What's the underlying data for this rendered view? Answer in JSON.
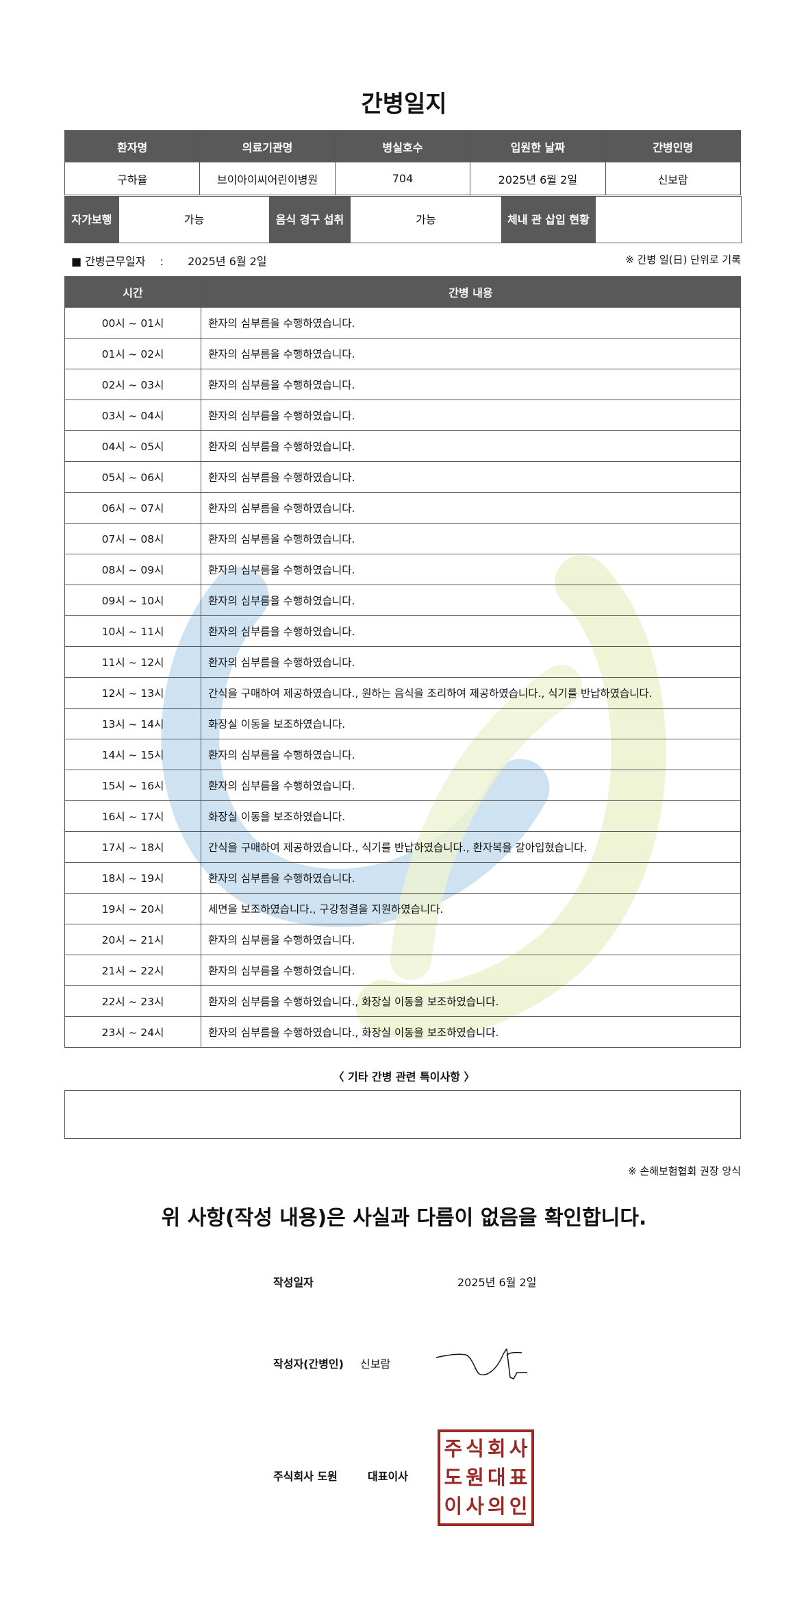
{
  "title": "간병일지",
  "info": {
    "headers": [
      "환자명",
      "의료기관명",
      "병실호수",
      "입원한 날짜",
      "간병인명"
    ],
    "values": [
      "구하율",
      "브이아이씨어린이병원",
      "704",
      "2025년 6월 2일",
      "신보람"
    ]
  },
  "status": {
    "walk_label": "자가보행",
    "walk_value": "가능",
    "food_label": "음식 경구 섭취",
    "food_value": "가능",
    "tube_label": "체내 관 삽입 현황",
    "tube_value": ""
  },
  "work_date": {
    "label": "■ 간병근무일자",
    "sep": ":",
    "value": "2025년 6월 2일",
    "note": "※ 간병 일(日) 단위로 기록"
  },
  "log": {
    "headers": [
      "시간",
      "간병 내용"
    ],
    "rows": [
      [
        "00시 ~ 01시",
        "환자의 심부름을 수행하였습니다."
      ],
      [
        "01시 ~ 02시",
        "환자의 심부름을 수행하였습니다."
      ],
      [
        "02시 ~ 03시",
        "환자의 심부름을 수행하였습니다."
      ],
      [
        "03시 ~ 04시",
        "환자의 심부름을 수행하였습니다."
      ],
      [
        "04시 ~ 05시",
        "환자의 심부름을 수행하였습니다."
      ],
      [
        "05시 ~ 06시",
        "환자의 심부름을 수행하였습니다."
      ],
      [
        "06시 ~ 07시",
        "환자의 심부름을 수행하였습니다."
      ],
      [
        "07시 ~ 08시",
        "환자의 심부름을 수행하였습니다."
      ],
      [
        "08시 ~ 09시",
        "환자의 심부름을 수행하였습니다."
      ],
      [
        "09시 ~ 10시",
        "환자의 심부름을 수행하였습니다."
      ],
      [
        "10시 ~ 11시",
        "환자의 심부름을 수행하였습니다."
      ],
      [
        "11시 ~ 12시",
        "환자의 심부름을 수행하였습니다."
      ],
      [
        "12시 ~ 13시",
        "간식을 구매하여 제공하였습니다., 원하는 음식을 조리하여 제공하였습니다., 식기를 반납하였습니다."
      ],
      [
        "13시 ~ 14시",
        "화장실 이동을 보조하였습니다."
      ],
      [
        "14시 ~ 15시",
        "환자의 심부름을 수행하였습니다."
      ],
      [
        "15시 ~ 16시",
        "환자의 심부름을 수행하였습니다."
      ],
      [
        "16시 ~ 17시",
        "화장실 이동을 보조하였습니다."
      ],
      [
        "17시 ~ 18시",
        "간식을 구매하여 제공하였습니다., 식기를 반납하였습니다., 환자복을 갈아입혔습니다."
      ],
      [
        "18시 ~ 19시",
        "환자의 심부름을 수행하였습니다."
      ],
      [
        "19시 ~ 20시",
        "세면을 보조하였습니다., 구강청결을 지원하였습니다."
      ],
      [
        "20시 ~ 21시",
        "환자의 심부름을 수행하였습니다."
      ],
      [
        "21시 ~ 22시",
        "환자의 심부름을 수행하였습니다."
      ],
      [
        "22시 ~ 23시",
        "환자의 심부름을 수행하였습니다., 화장실 이동을 보조하였습니다."
      ],
      [
        "23시 ~ 24시",
        "환자의 심부름을 수행하였습니다., 화장실 이동을 보조하였습니다."
      ]
    ]
  },
  "special": {
    "title": "〈 기타 간병 관련 특이사항 〉",
    "content": ""
  },
  "assoc_note": "※ 손해보험협회 권장 양식",
  "statement": "위 사항(작성 내용)은 사실과 다름이 없음을 확인합니다.",
  "sign": {
    "date_label": "작성일자",
    "date_value": "2025년 6월 2일",
    "writer_label": "작성자(간병인)",
    "writer_value": "신보람",
    "company": "주식회사 도원",
    "ceo_label": "대표이사",
    "stamp_text": "주식회사도원대표이사의인",
    "stamp_color": "#9b2a26"
  },
  "watermark_colors": [
    "#c6ddef",
    "#eef3d2"
  ]
}
